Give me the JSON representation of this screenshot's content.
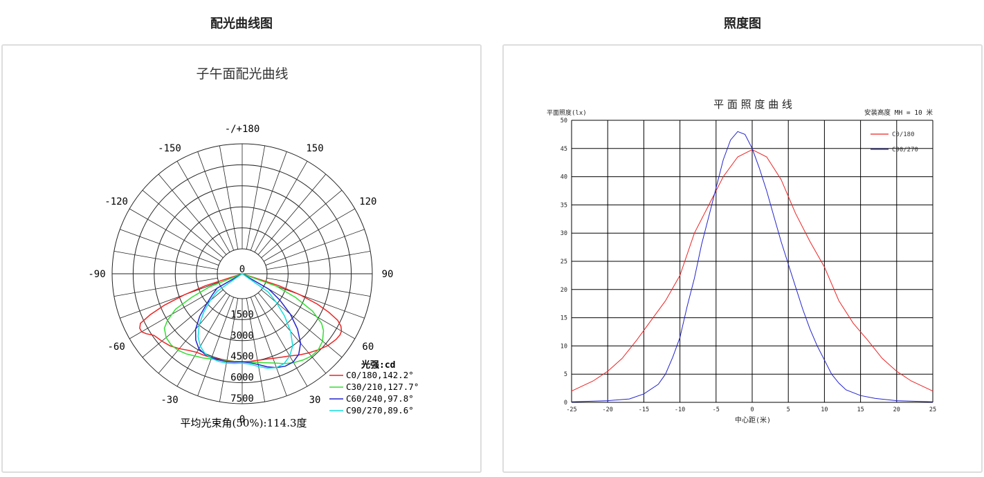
{
  "panels": {
    "left_title": "配光曲线图",
    "right_title": "照度图"
  },
  "chart_data": [
    {
      "type": "polar",
      "title": "子午面配光曲线",
      "angle_labels": [
        {
          "angle": 0,
          "label": "0"
        },
        {
          "angle": 30,
          "label": "30"
        },
        {
          "angle": 60,
          "label": "60"
        },
        {
          "angle": 90,
          "label": "90"
        },
        {
          "angle": 120,
          "label": "120"
        },
        {
          "angle": 150,
          "label": "150"
        },
        {
          "angle": 180,
          "label": "-/+180"
        },
        {
          "angle": -150,
          "label": "-150"
        },
        {
          "angle": -120,
          "label": "-120"
        },
        {
          "angle": -90,
          "label": "-90"
        },
        {
          "angle": -60,
          "label": "-60"
        },
        {
          "angle": -30,
          "label": "-30"
        }
      ],
      "center_label": "0",
      "radial_ticks": [
        {
          "value": 1500,
          "label": "1500"
        },
        {
          "value": 3000,
          "label": "3000"
        },
        {
          "value": 4500,
          "label": "4500"
        },
        {
          "value": 6000,
          "label": "6000"
        },
        {
          "value": 7500,
          "label": "7500"
        }
      ],
      "rmax": 7500,
      "legend_title": "光强:cd",
      "footer": "平均光束角(50%):114.3度",
      "series": [
        {
          "name": "C0/180,142.2°",
          "color": "#ee2222",
          "points": [
            [
              -72,
              1000
            ],
            [
              -70,
              2600
            ],
            [
              -68,
              4200
            ],
            [
              -66,
              5400
            ],
            [
              -64,
              6300
            ],
            [
              -62,
              6500
            ],
            [
              -60,
              6500
            ],
            [
              -58,
              6300
            ],
            [
              -55,
              5900
            ],
            [
              -50,
              5700
            ],
            [
              -45,
              5500
            ],
            [
              -40,
              5200
            ],
            [
              -35,
              4900
            ],
            [
              -30,
              4700
            ],
            [
              -25,
              4650
            ],
            [
              -20,
              4600
            ],
            [
              -15,
              4550
            ],
            [
              -10,
              4500
            ],
            [
              -5,
              4500
            ],
            [
              0,
              4500
            ],
            [
              5,
              4500
            ],
            [
              10,
              4500
            ],
            [
              15,
              4550
            ],
            [
              20,
              4650
            ],
            [
              25,
              4800
            ],
            [
              30,
              5000
            ],
            [
              35,
              5300
            ],
            [
              40,
              5600
            ],
            [
              45,
              5900
            ],
            [
              50,
              6200
            ],
            [
              55,
              6400
            ],
            [
              58,
              6450
            ],
            [
              60,
              6400
            ],
            [
              62,
              6200
            ],
            [
              64,
              5800
            ],
            [
              66,
              5000
            ],
            [
              68,
              4000
            ],
            [
              70,
              2600
            ],
            [
              72,
              1000
            ]
          ]
        },
        {
          "name": "C30/210,127.7°",
          "color": "#33dd33",
          "points": [
            [
              -68,
              800
            ],
            [
              -65,
              2200
            ],
            [
              -62,
              3600
            ],
            [
              -58,
              4500
            ],
            [
              -55,
              5000
            ],
            [
              -50,
              5300
            ],
            [
              -45,
              5400
            ],
            [
              -40,
              5350
            ],
            [
              -35,
              5200
            ],
            [
              -30,
              5000
            ],
            [
              -25,
              4850
            ],
            [
              -20,
              4700
            ],
            [
              -15,
              4600
            ],
            [
              -10,
              4550
            ],
            [
              -5,
              4500
            ],
            [
              0,
              4500
            ],
            [
              5,
              4550
            ],
            [
              10,
              4650
            ],
            [
              15,
              4800
            ],
            [
              20,
              5000
            ],
            [
              25,
              5300
            ],
            [
              30,
              5550
            ],
            [
              35,
              5750
            ],
            [
              40,
              5900
            ],
            [
              45,
              5900
            ],
            [
              50,
              5700
            ],
            [
              55,
              5300
            ],
            [
              58,
              4900
            ],
            [
              62,
              3900
            ],
            [
              66,
              2400
            ],
            [
              70,
              800
            ]
          ]
        },
        {
          "name": "C60/240,97.8°",
          "color": "#2222cc",
          "points": [
            [
              -60,
              300
            ],
            [
              -55,
              800
            ],
            [
              -50,
              1500
            ],
            [
              -45,
              2500
            ],
            [
              -40,
              3400
            ],
            [
              -35,
              4000
            ],
            [
              -30,
              4400
            ],
            [
              -25,
              4550
            ],
            [
              -20,
              4600
            ],
            [
              -15,
              4600
            ],
            [
              -10,
              4600
            ],
            [
              -5,
              4550
            ],
            [
              0,
              4500
            ],
            [
              5,
              4600
            ],
            [
              10,
              4800
            ],
            [
              15,
              5100
            ],
            [
              20,
              5350
            ],
            [
              25,
              5500
            ],
            [
              30,
              5500
            ],
            [
              35,
              5250
            ],
            [
              40,
              4700
            ],
            [
              45,
              3800
            ],
            [
              50,
              2700
            ],
            [
              55,
              1500
            ],
            [
              60,
              400
            ]
          ]
        },
        {
          "name": "C90/270,89.6°",
          "color": "#11dddd",
          "points": [
            [
              -55,
              400
            ],
            [
              -50,
              1200
            ],
            [
              -45,
              2100
            ],
            [
              -40,
              3000
            ],
            [
              -35,
              3700
            ],
            [
              -30,
              4200
            ],
            [
              -25,
              4500
            ],
            [
              -20,
              4650
            ],
            [
              -15,
              4700
            ],
            [
              -10,
              4700
            ],
            [
              -5,
              4650
            ],
            [
              0,
              4600
            ],
            [
              5,
              4700
            ],
            [
              10,
              4950
            ],
            [
              15,
              5200
            ],
            [
              20,
              5350
            ],
            [
              25,
              5300
            ],
            [
              30,
              5000
            ],
            [
              35,
              4500
            ],
            [
              40,
              3600
            ],
            [
              45,
              2500
            ],
            [
              50,
              1400
            ],
            [
              55,
              500
            ]
          ]
        }
      ]
    },
    {
      "type": "line",
      "title": "平 面 照 度 曲 线",
      "ylabel": "平面照度(lx)",
      "xlabel": "中心距(米)",
      "note": "安装高度 MH = 10 米",
      "xlim": [
        -25,
        25
      ],
      "ylim": [
        0,
        50
      ],
      "xticks": [
        -25,
        -20,
        -15,
        -10,
        -5,
        0,
        5,
        10,
        15,
        20,
        25
      ],
      "yticks": [
        0,
        5,
        10,
        15,
        20,
        25,
        30,
        35,
        40,
        45,
        50
      ],
      "grid": true,
      "legend_position": "top-right",
      "series": [
        {
          "name": "C0/180",
          "color": "#ee2222",
          "x": [
            -25,
            -22,
            -20,
            -18,
            -16,
            -14,
            -12,
            -10,
            -8,
            -6,
            -4,
            -2,
            0,
            2,
            4,
            6,
            8,
            10,
            12,
            14,
            16,
            18,
            20,
            22,
            25
          ],
          "y": [
            2,
            3.8,
            5.5,
            7.8,
            11,
            14.5,
            18,
            22.5,
            30,
            35,
            40,
            43.5,
            44.8,
            43.5,
            39.5,
            33.5,
            28.5,
            24,
            18,
            14,
            11,
            7.8,
            5.5,
            3.8,
            2
          ]
        },
        {
          "name": "C90/270",
          "color": "#2222cc",
          "x": [
            -25,
            -20,
            -17,
            -15,
            -13,
            -12,
            -11,
            -10,
            -9,
            -8,
            -7,
            -6,
            -5,
            -4,
            -3,
            -2,
            -1,
            0,
            1,
            2,
            3,
            4,
            5,
            6,
            7,
            8,
            9,
            10,
            11,
            12,
            13,
            15,
            17,
            20,
            25
          ],
          "y": [
            0.1,
            0.3,
            0.6,
            1.5,
            3.2,
            5,
            8,
            11.5,
            17,
            22,
            28,
            33,
            38,
            43,
            46.5,
            48,
            47.5,
            45,
            41.5,
            37.5,
            33,
            28.5,
            24.5,
            20.5,
            16.5,
            13,
            10,
            7.5,
            5,
            3.4,
            2.2,
            1.2,
            0.7,
            0.3,
            0.1
          ]
        }
      ]
    }
  ]
}
